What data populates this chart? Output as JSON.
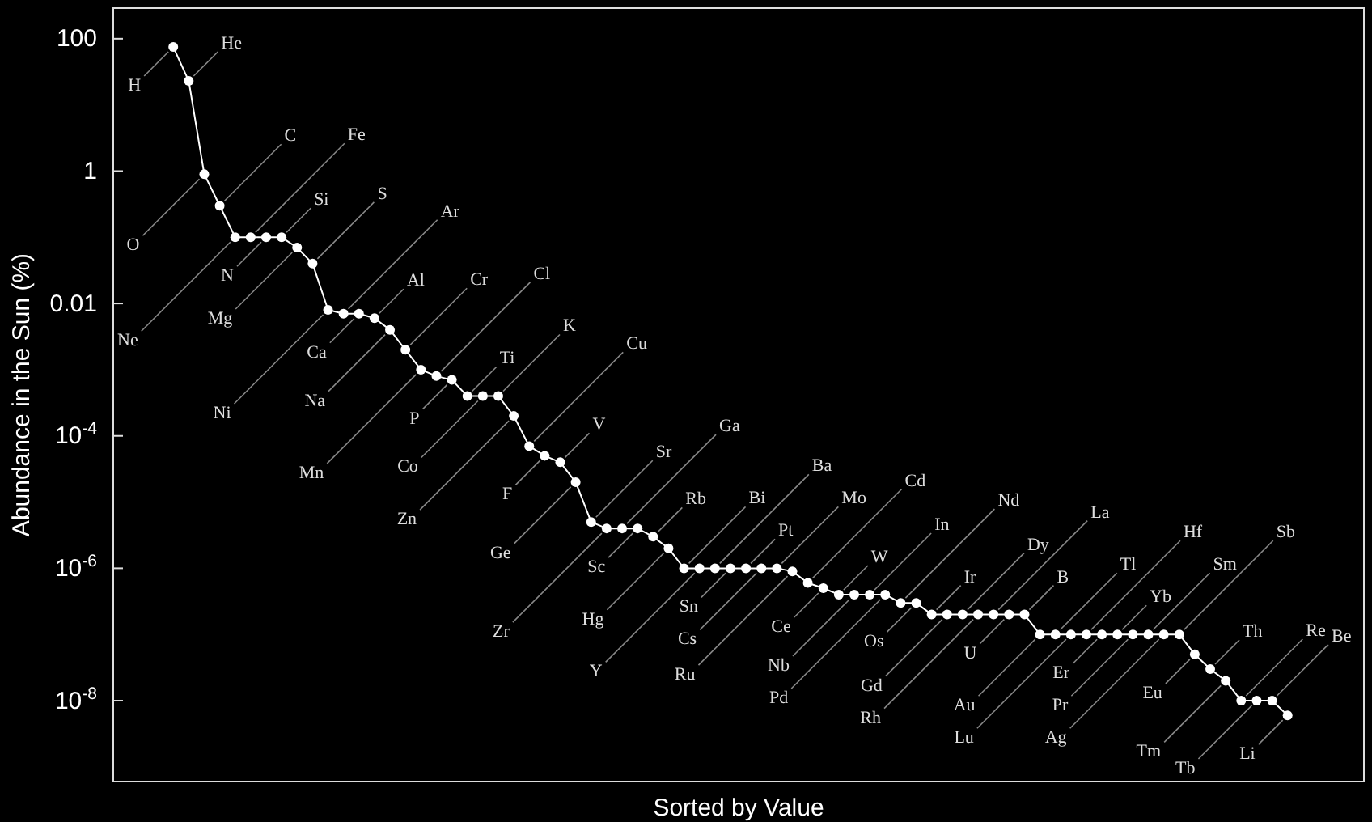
{
  "chart_data": {
    "type": "line",
    "xlabel": "Sorted by Value",
    "ylabel": "Abundance in the Sun (%)",
    "categories": [
      null,
      null,
      null,
      null,
      null,
      null,
      null,
      null,
      null,
      null,
      null,
      null,
      null,
      null,
      null,
      null,
      null,
      null,
      null,
      null,
      null,
      null,
      null,
      null,
      null,
      null,
      null,
      null,
      null,
      null,
      null,
      null,
      null,
      null,
      null,
      null,
      null,
      null,
      null,
      null,
      null,
      null,
      null,
      null,
      null,
      null,
      null,
      null,
      null,
      null,
      null,
      null,
      null,
      null,
      null,
      null,
      null,
      null,
      null,
      null,
      null,
      null,
      null,
      null,
      null,
      null,
      null,
      null,
      null,
      null,
      null,
      null,
      null
    ],
    "series": [
      {
        "color": "#ffffff",
        "values": [
          75,
          23,
          0.9,
          0.3,
          0.1,
          0.1,
          0.1,
          0.1,
          0.07,
          0.04,
          0.008,
          0.007,
          0.007,
          0.006,
          0.004,
          0.002,
          0.001,
          0.0008,
          0.0007,
          0.0004,
          0.0004,
          0.0004,
          0.0002,
          7e-05,
          5e-05,
          4e-05,
          2e-05,
          5e-06,
          4e-06,
          4e-06,
          4e-06,
          3e-06,
          2e-06,
          1e-06,
          1e-06,
          1e-06,
          1e-06,
          1e-06,
          1e-06,
          1e-06,
          9e-07,
          6e-07,
          5e-07,
          4e-07,
          4e-07,
          4e-07,
          4e-07,
          3e-07,
          3e-07,
          2e-07,
          2e-07,
          2e-07,
          2e-07,
          2e-07,
          2e-07,
          2e-07,
          1e-07,
          1e-07,
          1e-07,
          1e-07,
          1e-07,
          1e-07,
          1e-07,
          1e-07,
          1e-07,
          1e-07,
          5e-08,
          3e-08,
          2e-08,
          1e-08,
          1e-08,
          1e-08,
          6e-09
        ]
      }
    ],
    "annotations": [
      "H",
      "He",
      "O",
      "C",
      "Ne",
      "Fe",
      "N",
      "Si",
      "Mg",
      "S",
      "Ni",
      "Ar",
      "Ca",
      "Al",
      "Na",
      "Cr",
      "Mn",
      "Cl",
      "P",
      "Ti",
      "Co",
      "K",
      "Zn",
      "Cu",
      "F",
      "V",
      "Ge",
      "Sr",
      "Zr",
      "Ga",
      "Sc",
      "Rb",
      "Hg",
      "Bi",
      "Y",
      "Ba",
      "Sn",
      "Pt",
      "Cs",
      "Mo",
      "Ru",
      "Cd",
      "Ce",
      "W",
      "Nb",
      "In",
      "Pd",
      "Nd",
      "Os",
      "Ir",
      "Gd",
      "Dy",
      "Rh",
      "La",
      "U",
      "B",
      "Au",
      "Tl",
      "Lu",
      "Hf",
      "Er",
      "Yb",
      "Pr",
      "Sm",
      "Ag",
      "Sb",
      "Eu",
      "Th",
      "Tm",
      "Re",
      "Tb",
      "Be",
      "Li"
    ],
    "log": true,
    "ylim": [
      6e-10,
      290
    ],
    "yticks": [
      100,
      1,
      0.01,
      {
        "value": 0.0001,
        "label": "10$^{-4}$"
      },
      {
        "value": 1e-06,
        "label": "10$^{-6}$"
      },
      {
        "value": 1e-08,
        "label": "10$^{-8}$"
      }
    ],
    "grid": false,
    "marker": "circle",
    "line_style": "solid"
  }
}
